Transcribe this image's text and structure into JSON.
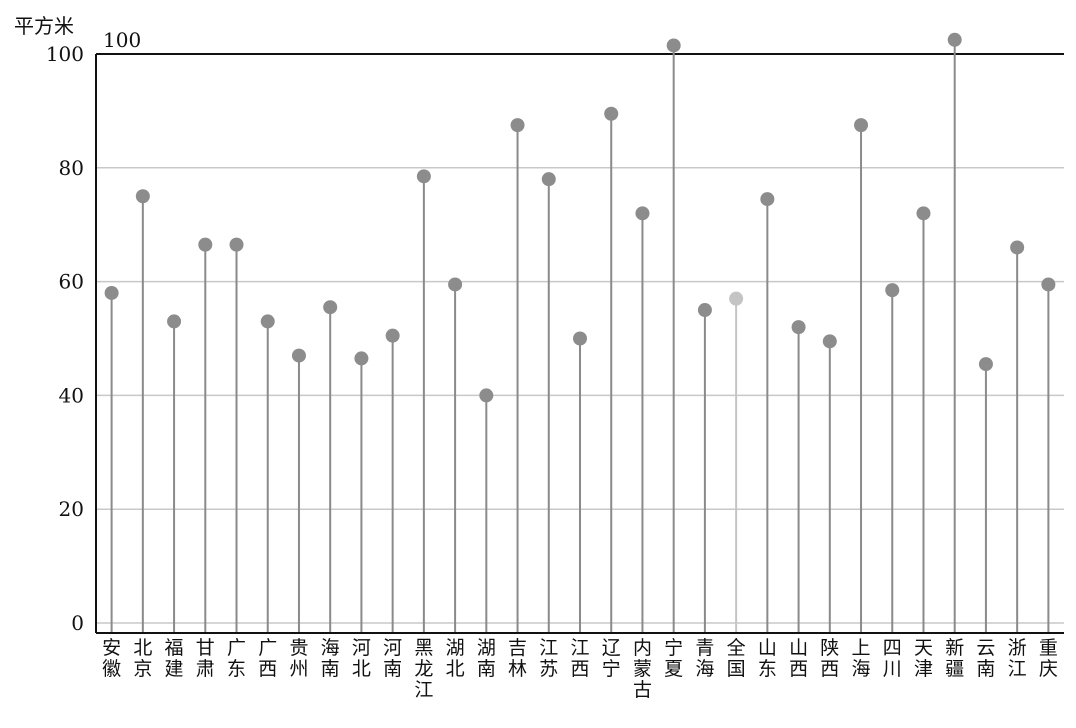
{
  "chart_data": {
    "type": "lollipop",
    "ylabel": "平方米",
    "ylim": [
      0,
      100
    ],
    "yticks": [
      0,
      20,
      40,
      60,
      80,
      100
    ],
    "grid": true,
    "annotation": "100",
    "categories": [
      "安徽",
      "北京",
      "福建",
      "甘肃",
      "广东",
      "广西",
      "贵州",
      "海南",
      "河北",
      "河南",
      "黑龙江",
      "湖北",
      "湖南",
      "吉林",
      "江苏",
      "江西",
      "辽宁",
      "内蒙古",
      "宁夏",
      "青海",
      "全国",
      "山东",
      "山西",
      "陕西",
      "上海",
      "四川",
      "天津",
      "新疆",
      "云南",
      "浙江",
      "重庆"
    ],
    "values": [
      58,
      75,
      53,
      66.5,
      66.5,
      53,
      47,
      55.5,
      46.5,
      50.5,
      78.5,
      59.5,
      40,
      87.5,
      78,
      50,
      89.5,
      72,
      101.5,
      55,
      57,
      74.5,
      52,
      49.5,
      87.5,
      58.5,
      72,
      102.5,
      45.5,
      66,
      59.5
    ],
    "highlight": "全国",
    "colors": {
      "stem": "#8a8a8a",
      "dot": "#8c8c8c",
      "highlight": "#c4c4c4",
      "grid": "#c8c8c8",
      "axis": "#111111"
    }
  }
}
